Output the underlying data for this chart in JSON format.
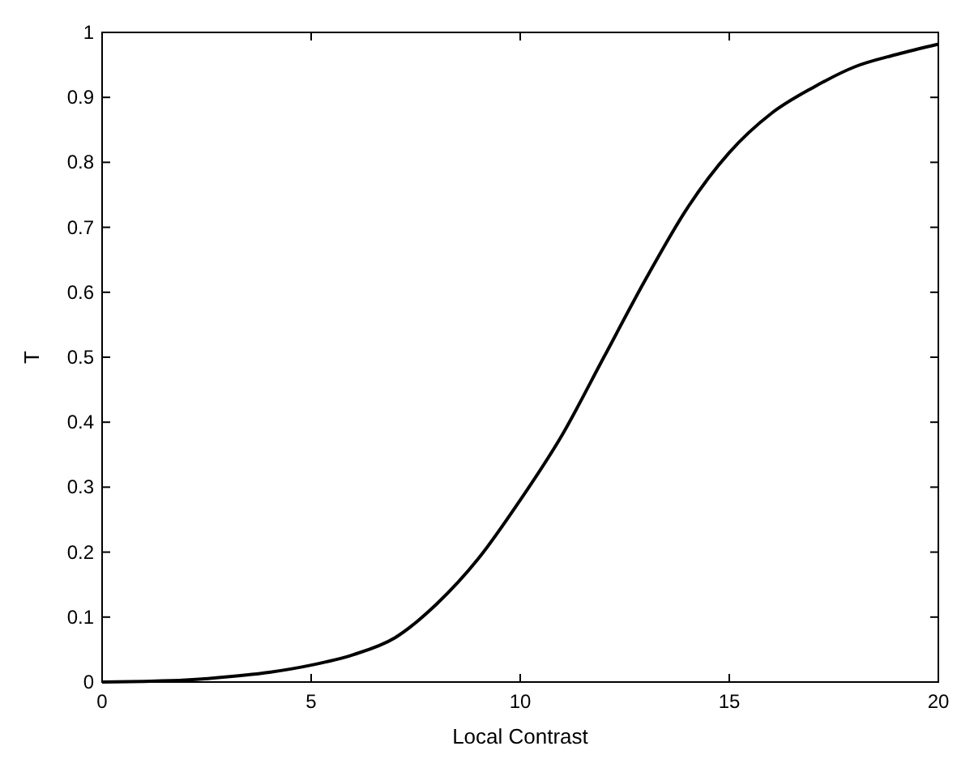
{
  "chart_data": {
    "type": "line",
    "xlabel": "Local Contrast",
    "ylabel": "T",
    "xlim": [
      0,
      20
    ],
    "ylim": [
      0,
      1
    ],
    "xticks": [
      0,
      5,
      10,
      15,
      20
    ],
    "yticks": [
      0,
      0.1,
      0.2,
      0.3,
      0.4,
      0.5,
      0.6,
      0.7,
      0.8,
      0.9,
      1
    ],
    "grid": false,
    "marker": "none",
    "line_style": "solid",
    "series": [
      {
        "color": "#000000",
        "x": [
          0,
          1,
          2,
          3,
          4,
          5,
          6,
          7,
          8,
          9,
          10,
          11,
          12,
          13,
          14,
          15,
          16,
          17,
          18,
          19,
          20
        ],
        "values": [
          0,
          0.001,
          0.003,
          0.008,
          0.015,
          0.026,
          0.042,
          0.068,
          0.12,
          0.19,
          0.28,
          0.38,
          0.5,
          0.62,
          0.73,
          0.815,
          0.875,
          0.915,
          0.947,
          0.966,
          0.982
        ]
      }
    ]
  }
}
